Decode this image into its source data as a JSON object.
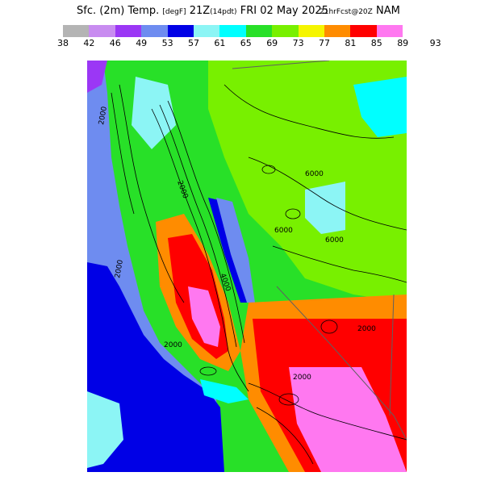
{
  "header": {
    "title_prefix": "Sfc. (2m) Temp.",
    "title_unit": "[degF]",
    "title_valid": "21Z",
    "title_local": "(14pdt)",
    "title_date": "FRI 02 May 2025",
    "title_forecast": "21hrFcst@20Z",
    "title_model": "NAM"
  },
  "legend": {
    "colors": [
      "#b4b4b4",
      "#c88cf0",
      "#9b37f5",
      "#6e8cf0",
      "#0000e6",
      "#8cf5f5",
      "#00ffff",
      "#28e028",
      "#78f000",
      "#f5f500",
      "#ff8c00",
      "#ff0000",
      "#ff78f0"
    ],
    "labels": [
      "38",
      "42",
      "46",
      "49",
      "53",
      "57",
      "61",
      "65",
      "69",
      "73",
      "77",
      "81",
      "85",
      "89",
      "93"
    ]
  },
  "map": {
    "contour_labels": [
      "2000",
      "2000",
      "2000",
      "6000",
      "6000",
      "6000",
      "2000",
      "2000",
      "2000",
      "4000"
    ]
  }
}
